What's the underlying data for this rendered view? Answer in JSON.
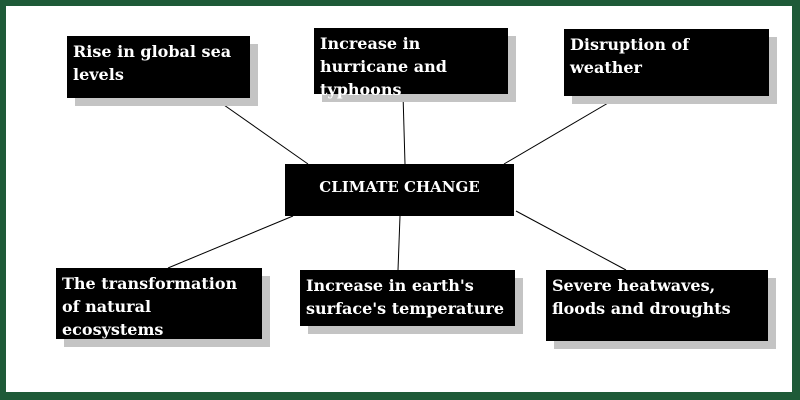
{
  "diagram": {
    "center": {
      "label": "CLIMATE CHANGE"
    },
    "effects": [
      {
        "id": "sea-levels",
        "label": "Rise in global sea levels"
      },
      {
        "id": "hurricanes",
        "label": "Increase in hurricane and typhoons"
      },
      {
        "id": "weather",
        "label": "Disruption of weather"
      },
      {
        "id": "ecosystems",
        "label": "The transformation of natural ecosystems"
      },
      {
        "id": "temperature",
        "label": "Increase in earth's surface's temperature"
      },
      {
        "id": "heatwaves",
        "label": "Severe heatwaves, floods and droughts"
      }
    ]
  },
  "colors": {
    "frame": "#1e5a38",
    "box": "#000000",
    "text": "#ffffff",
    "shadow": "#c4c4c4",
    "connector": "#000000"
  }
}
